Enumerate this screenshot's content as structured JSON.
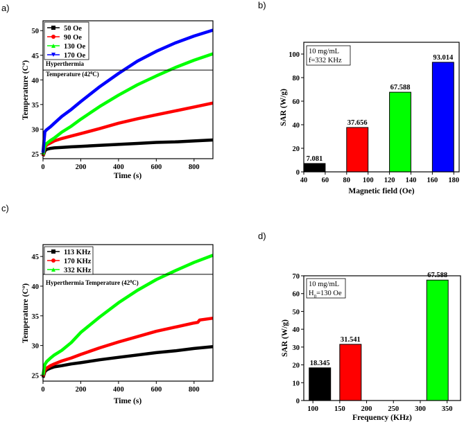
{
  "chart_data": [
    {
      "panel": "a)",
      "type": "line",
      "xlabel": "Time (s)",
      "ylabel_main": "Temperature (C",
      "ylabel_sup": "o",
      "ylabel_end": ")",
      "xlim": [
        0,
        900
      ],
      "ylim": [
        24,
        52
      ],
      "xticks": [
        0,
        200,
        400,
        600,
        800
      ],
      "yticks": [
        25,
        30,
        35,
        40,
        45,
        50
      ],
      "threshold": 42,
      "threshold_label_top": "Hyperthermia",
      "threshold_label_main": "Temperature (42",
      "threshold_label_sup": "0",
      "threshold_label_end": "C)",
      "series": [
        {
          "name": "50 Oe",
          "color": "#000000",
          "marker": "square",
          "x": [
            0,
            10,
            20,
            40,
            60,
            100,
            150,
            200,
            300,
            400,
            500,
            600,
            700,
            800,
            900
          ],
          "y": [
            24.5,
            25.6,
            25.9,
            26.1,
            26.2,
            26.3,
            26.4,
            26.5,
            26.7,
            26.9,
            27.1,
            27.3,
            27.4,
            27.6,
            27.8
          ]
        },
        {
          "name": "90 Oe",
          "color": "#ff0000",
          "marker": "circle",
          "x": [
            0,
            10,
            20,
            40,
            60,
            100,
            150,
            200,
            300,
            400,
            500,
            600,
            700,
            800,
            900
          ],
          "y": [
            24.6,
            26.3,
            26.8,
            27.2,
            27.6,
            28.1,
            28.6,
            29.1,
            30.1,
            31.2,
            32.1,
            32.9,
            33.7,
            34.5,
            35.3
          ]
        },
        {
          "name": "130 Oe",
          "color": "#00ff00",
          "marker": "triangle-up",
          "x": [
            0,
            10,
            20,
            40,
            60,
            100,
            150,
            200,
            300,
            400,
            500,
            600,
            700,
            800,
            900
          ],
          "y": [
            24.8,
            26.6,
            27.1,
            27.7,
            28.2,
            29.4,
            30.6,
            32.0,
            34.6,
            36.9,
            39.0,
            40.8,
            42.5,
            44.0,
            45.3
          ]
        },
        {
          "name": "170 Oe",
          "color": "#0000ff",
          "marker": "triangle-down",
          "x": [
            0,
            10,
            20,
            40,
            60,
            100,
            150,
            200,
            300,
            400,
            500,
            600,
            700,
            800,
            900
          ],
          "y": [
            25.2,
            29.5,
            29.9,
            30.5,
            31.2,
            32.6,
            34.0,
            35.6,
            38.6,
            41.3,
            43.8,
            45.8,
            47.5,
            48.9,
            50.1
          ]
        }
      ]
    },
    {
      "panel": "b)",
      "type": "bar",
      "xlabel": "Magnetic field (Oe)",
      "ylabel": "SAR (W/g)",
      "xlim": [
        40,
        185
      ],
      "ylim": [
        0,
        110
      ],
      "xticks": [
        40,
        60,
        80,
        100,
        120,
        140,
        160,
        180
      ],
      "yticks": [
        0,
        20,
        40,
        60,
        80,
        100
      ],
      "info_lines": [
        "10 mg/mL",
        "f=332 KHz"
      ],
      "bar_width": 20,
      "categories": [
        50,
        90,
        130,
        170
      ],
      "values": [
        7.081,
        37.656,
        67.588,
        93.014
      ],
      "labels": [
        "7.081",
        "37.656",
        "67.588",
        "93.014"
      ],
      "colors": [
        "#000000",
        "#ff0000",
        "#00ff00",
        "#0000ff"
      ]
    },
    {
      "panel": "c)",
      "type": "line",
      "xlabel": "Time (s)",
      "ylabel_main": "Temperature (C",
      "ylabel_sup": "o",
      "ylabel_end": ")",
      "xlim": [
        0,
        900
      ],
      "ylim": [
        24,
        47
      ],
      "xticks": [
        0,
        200,
        400,
        600,
        800
      ],
      "yticks": [
        25,
        30,
        35,
        40,
        45
      ],
      "threshold": 42,
      "threshold_label_main": "Hyperthermia Temperature (42",
      "threshold_label_sup": "0",
      "threshold_label_end": "C)",
      "series": [
        {
          "name": "113 KHz",
          "color": "#000000",
          "marker": "square",
          "x": [
            0,
            10,
            20,
            40,
            60,
            100,
            150,
            200,
            300,
            400,
            500,
            600,
            700,
            800,
            900
          ],
          "y": [
            24.6,
            25.6,
            25.9,
            26.2,
            26.4,
            26.6,
            26.9,
            27.1,
            27.6,
            28.0,
            28.4,
            28.8,
            29.1,
            29.5,
            29.8
          ]
        },
        {
          "name": "170 KHz",
          "color": "#ff0000",
          "marker": "circle",
          "x": [
            0,
            10,
            20,
            40,
            60,
            100,
            150,
            200,
            300,
            400,
            500,
            600,
            700,
            800,
            820,
            830,
            900
          ],
          "y": [
            24.8,
            25.9,
            26.2,
            26.6,
            26.9,
            27.4,
            27.9,
            28.5,
            29.6,
            30.6,
            31.5,
            32.4,
            33.1,
            33.8,
            33.9,
            34.3,
            34.6
          ]
        },
        {
          "name": "332 KHz",
          "color": "#00ff00",
          "marker": "triangle-up",
          "x": [
            0,
            10,
            20,
            40,
            60,
            100,
            150,
            200,
            300,
            400,
            500,
            600,
            700,
            800,
            900
          ],
          "y": [
            25.0,
            26.8,
            27.3,
            27.9,
            28.4,
            29.2,
            30.5,
            32.2,
            34.8,
            37.2,
            39.3,
            41.1,
            42.6,
            44.0,
            45.2
          ]
        }
      ]
    },
    {
      "panel": "d)",
      "type": "bar",
      "xlabel": "Frequency (KHz)",
      "ylabel": "SAR (W/g)",
      "xlim": [
        83,
        375
      ],
      "ylim": [
        0,
        70
      ],
      "xticks": [
        100,
        150,
        200,
        250,
        300,
        350
      ],
      "yticks": [
        0,
        10,
        20,
        30,
        40,
        50,
        60,
        70
      ],
      "info_line1": "10 mg/mL",
      "info_line2_main": "H",
      "info_line2_sub": "0",
      "info_line2_end": "=130 Oe",
      "bar_width": 40,
      "categories": [
        113,
        170,
        332
      ],
      "values": [
        18.345,
        31.541,
        67.588
      ],
      "labels": [
        "18.345",
        "31.541",
        "67.588"
      ],
      "colors": [
        "#000000",
        "#ff0000",
        "#00ff00"
      ]
    }
  ]
}
